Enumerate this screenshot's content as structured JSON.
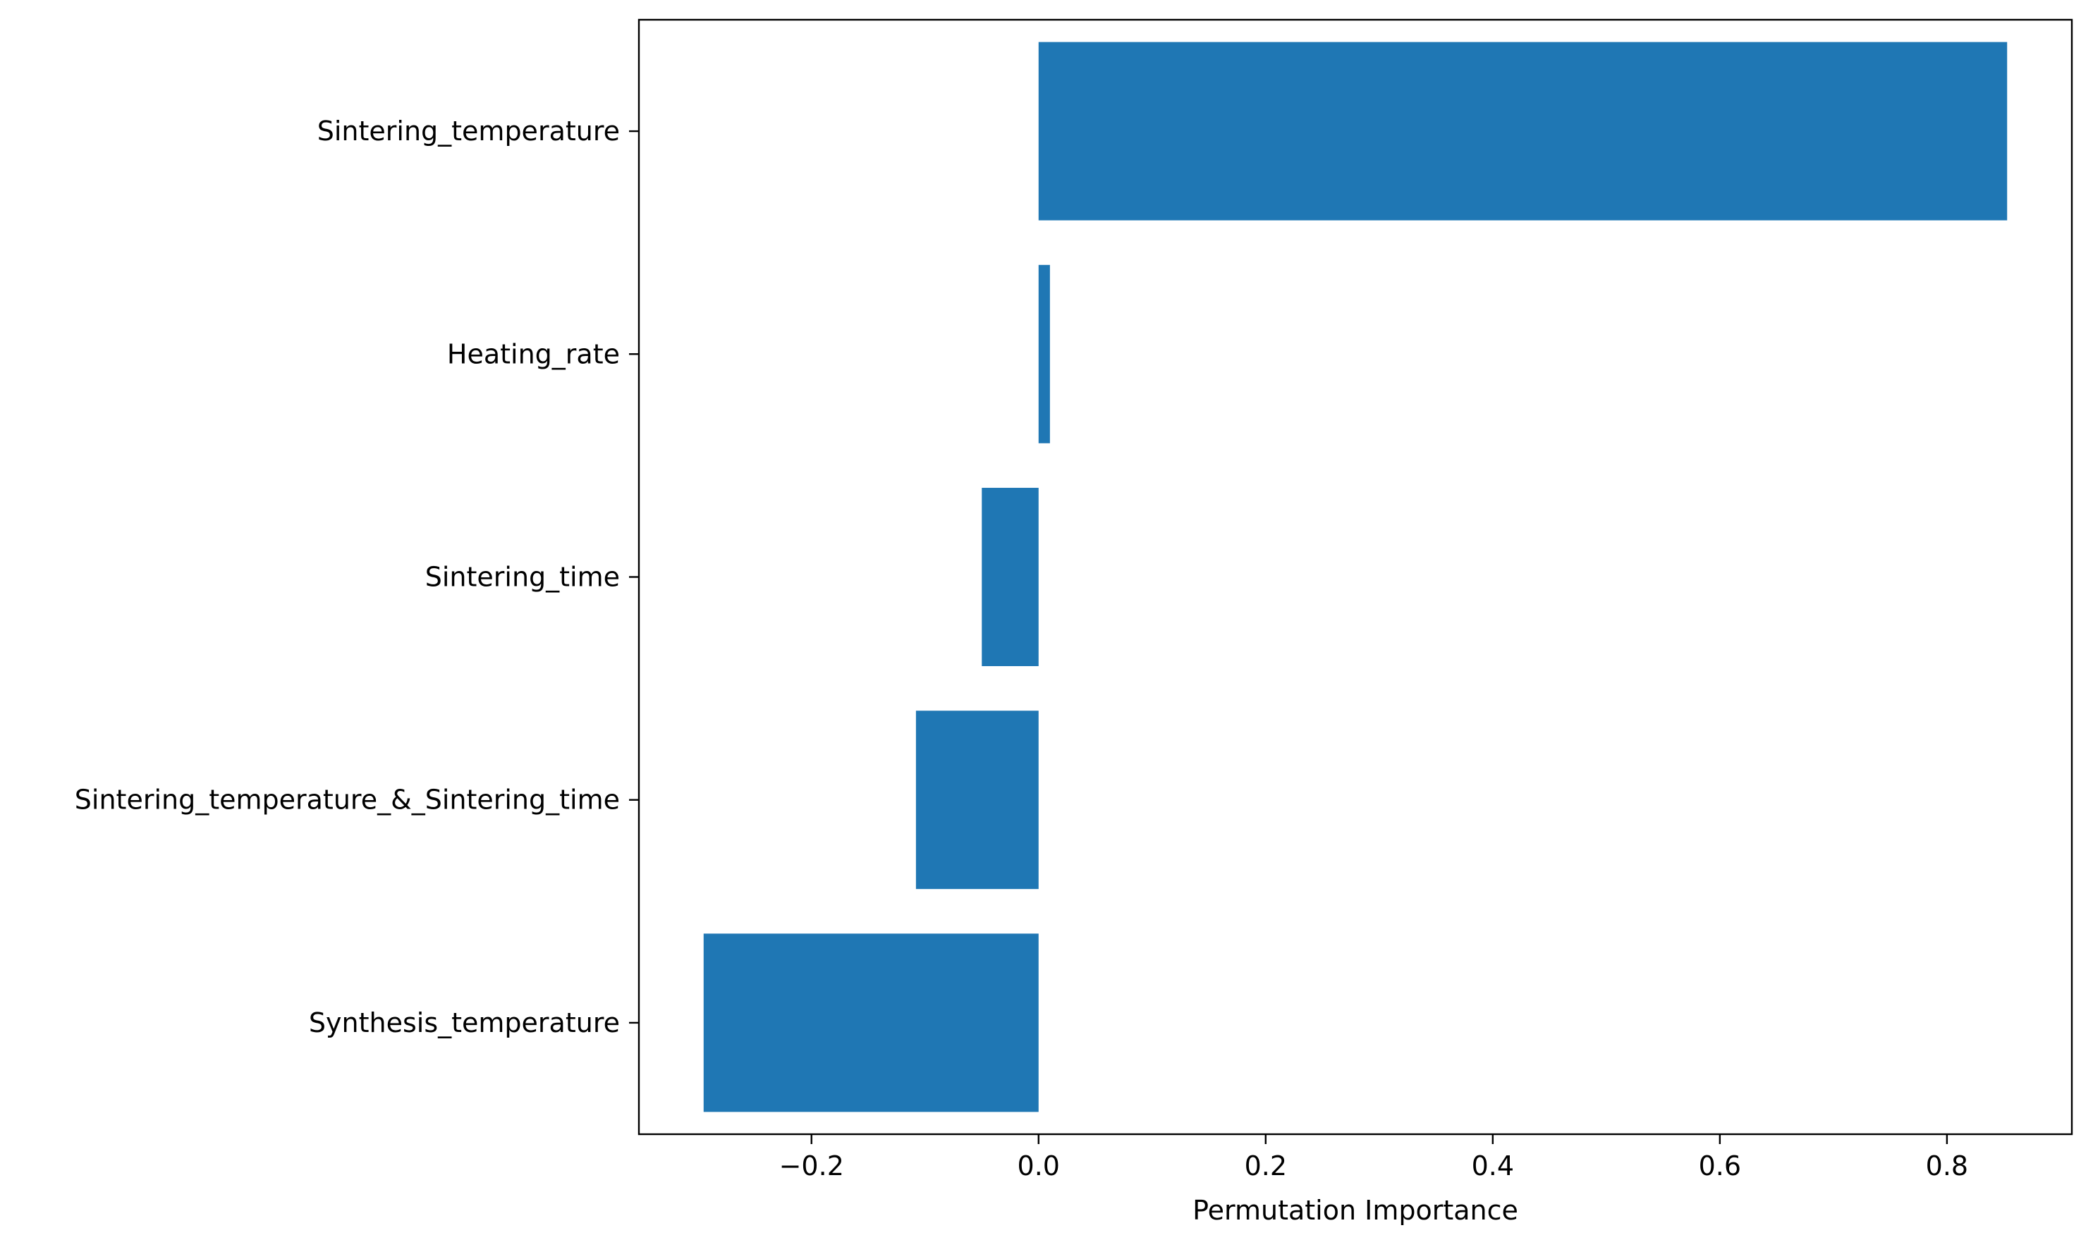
{
  "chart_data": {
    "type": "bar",
    "orientation": "horizontal",
    "categories": [
      "Sintering_temperature",
      "Heating_rate",
      "Sintering_time",
      "Sintering_temperature_&_Sintering_time",
      "Synthesis_temperature"
    ],
    "values": [
      0.853,
      0.01,
      -0.05,
      -0.108,
      -0.295
    ],
    "title": "",
    "xlabel": "Permutation Importance",
    "ylabel": "",
    "xlim": [
      -0.352,
      0.91
    ],
    "xticks": [
      -0.2,
      0.0,
      0.2,
      0.4,
      0.6,
      0.8
    ],
    "xtick_labels": [
      "−0.2",
      "0.0",
      "0.2",
      "0.4",
      "0.6",
      "0.8"
    ],
    "bar_color": "#1f77b4",
    "grid": false,
    "legend": "none"
  }
}
